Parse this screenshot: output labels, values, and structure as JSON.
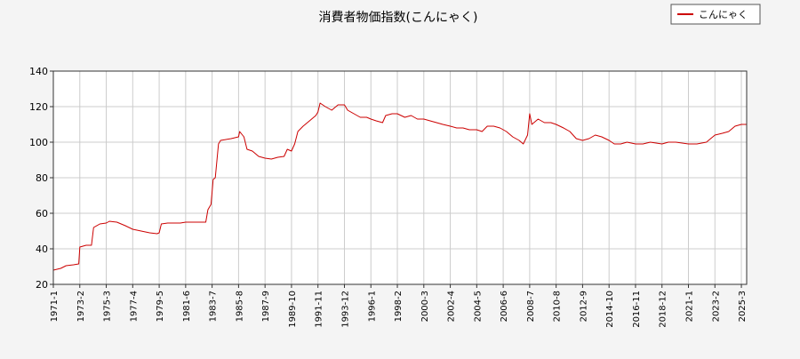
{
  "chart_data": {
    "type": "line",
    "title": "消費者物価指数(こんにゃく)",
    "xlabel": "",
    "ylabel": "",
    "ylim": [
      20,
      140
    ],
    "yticks": [
      20,
      40,
      60,
      80,
      100,
      120,
      140
    ],
    "xlim": [
      "1971-1",
      "2025-8"
    ],
    "xticks": [
      "1971-1",
      "1973-2",
      "1975-3",
      "1977-4",
      "1979-5",
      "1981-6",
      "1983-7",
      "1985-8",
      "1987-9",
      "1989-10",
      "1991-11",
      "1993-12",
      "1996-1",
      "1998-2",
      "2000-3",
      "2002-4",
      "2004-5",
      "2006-6",
      "2008-7",
      "2010-8",
      "2012-9",
      "2014-10",
      "2016-11",
      "2018-12",
      "2021-1",
      "2023-2",
      "2025-3"
    ],
    "grid": true,
    "legend_position": "top-right",
    "colors": {
      "series": "#cc0000",
      "grid": "#cccccc",
      "background": "#f4f4f4",
      "plot_background": "#ffffff"
    },
    "series": [
      {
        "name": "こんにゃく",
        "points": [
          [
            "1971-1",
            28
          ],
          [
            "1971-8",
            29
          ],
          [
            "1972-1",
            30.5
          ],
          [
            "1972-8",
            31
          ],
          [
            "1973-1",
            31.5
          ],
          [
            "1973-2",
            41
          ],
          [
            "1973-8",
            42
          ],
          [
            "1974-1",
            42
          ],
          [
            "1974-3",
            52
          ],
          [
            "1974-9",
            54
          ],
          [
            "1975-3",
            54.5
          ],
          [
            "1975-6",
            55.5
          ],
          [
            "1976-1",
            55
          ],
          [
            "1976-9",
            53
          ],
          [
            "1977-4",
            51
          ],
          [
            "1977-12",
            50
          ],
          [
            "1978-8",
            49
          ],
          [
            "1979-3",
            48.5
          ],
          [
            "1979-5",
            49
          ],
          [
            "1979-7",
            54
          ],
          [
            "1980-1",
            54.5
          ],
          [
            "1981-1",
            54.5
          ],
          [
            "1981-6",
            55
          ],
          [
            "1982-6",
            55
          ],
          [
            "1983-1",
            55
          ],
          [
            "1983-3",
            62
          ],
          [
            "1983-6",
            65
          ],
          [
            "1983-8",
            79
          ],
          [
            "1983-10",
            80
          ],
          [
            "1984-1",
            99
          ],
          [
            "1984-3",
            101
          ],
          [
            "1985-1",
            102
          ],
          [
            "1985-8",
            103
          ],
          [
            "1985-9",
            106
          ],
          [
            "1986-1",
            103
          ],
          [
            "1986-4",
            96
          ],
          [
            "1986-9",
            95
          ],
          [
            "1987-3",
            92
          ],
          [
            "1987-9",
            91
          ],
          [
            "1988-3",
            90.5
          ],
          [
            "1988-9",
            91.5
          ],
          [
            "1989-3",
            92
          ],
          [
            "1989-6",
            96
          ],
          [
            "1989-10",
            95
          ],
          [
            "1990-1",
            99
          ],
          [
            "1990-4",
            106
          ],
          [
            "1990-9",
            109
          ],
          [
            "1991-3",
            112
          ],
          [
            "1991-9",
            115
          ],
          [
            "1991-11",
            117
          ],
          [
            "1992-1",
            122
          ],
          [
            "1992-6",
            120
          ],
          [
            "1992-12",
            118
          ],
          [
            "1993-6",
            121
          ],
          [
            "1993-12",
            121
          ],
          [
            "1994-3",
            118
          ],
          [
            "1994-9",
            116
          ],
          [
            "1995-3",
            114
          ],
          [
            "1995-9",
            114
          ],
          [
            "1996-1",
            113
          ],
          [
            "1996-6",
            112
          ],
          [
            "1996-12",
            111
          ],
          [
            "1997-3",
            115
          ],
          [
            "1997-9",
            116
          ],
          [
            "1998-2",
            116
          ],
          [
            "1998-9",
            114
          ],
          [
            "1999-3",
            115
          ],
          [
            "1999-9",
            113
          ],
          [
            "2000-3",
            113
          ],
          [
            "2000-9",
            112
          ],
          [
            "2001-3",
            111
          ],
          [
            "2001-9",
            110
          ],
          [
            "2002-4",
            109
          ],
          [
            "2002-10",
            108
          ],
          [
            "2003-4",
            108
          ],
          [
            "2003-10",
            107
          ],
          [
            "2004-5",
            107
          ],
          [
            "2004-10",
            106
          ],
          [
            "2005-3",
            109
          ],
          [
            "2005-9",
            109
          ],
          [
            "2006-3",
            108
          ],
          [
            "2006-9",
            106
          ],
          [
            "2007-3",
            103
          ],
          [
            "2007-9",
            101
          ],
          [
            "2008-1",
            99
          ],
          [
            "2008-5",
            104
          ],
          [
            "2008-7",
            116
          ],
          [
            "2008-9",
            110
          ],
          [
            "2009-3",
            113
          ],
          [
            "2009-9",
            111
          ],
          [
            "2010-3",
            111
          ],
          [
            "2010-8",
            110
          ],
          [
            "2011-3",
            108
          ],
          [
            "2011-9",
            106
          ],
          [
            "2012-3",
            102
          ],
          [
            "2012-9",
            101
          ],
          [
            "2013-3",
            102
          ],
          [
            "2013-9",
            104
          ],
          [
            "2014-3",
            103
          ],
          [
            "2014-10",
            101
          ],
          [
            "2015-3",
            99
          ],
          [
            "2015-9",
            99
          ],
          [
            "2016-3",
            100
          ],
          [
            "2016-11",
            99
          ],
          [
            "2017-6",
            99
          ],
          [
            "2018-1",
            100
          ],
          [
            "2018-12",
            99
          ],
          [
            "2019-6",
            100
          ],
          [
            "2020-1",
            100
          ],
          [
            "2021-1",
            99
          ],
          [
            "2021-9",
            99
          ],
          [
            "2022-6",
            100
          ],
          [
            "2023-2",
            104
          ],
          [
            "2023-9",
            105
          ],
          [
            "2024-3",
            106
          ],
          [
            "2024-9",
            109
          ],
          [
            "2025-3",
            110
          ],
          [
            "2025-8",
            110
          ]
        ]
      }
    ]
  }
}
